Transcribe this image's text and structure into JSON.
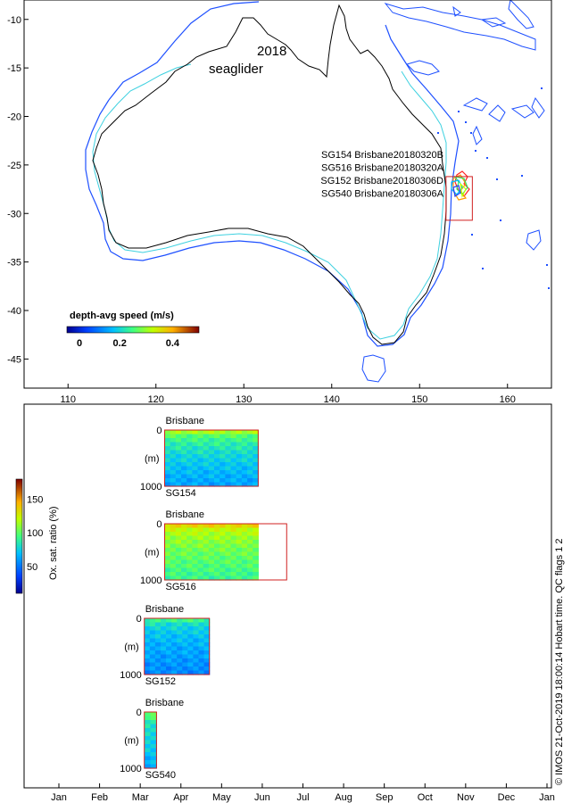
{
  "chart_data": [
    {
      "type": "map",
      "title_year": "2018",
      "title_name": "seaglider",
      "xlim": [
        105,
        165
      ],
      "ylim": [
        -48,
        -8
      ],
      "x_ticks": [
        110,
        120,
        130,
        140,
        150,
        160
      ],
      "y_ticks": [
        -10,
        -15,
        -20,
        -25,
        -30,
        -35,
        -40,
        -45
      ],
      "missions": [
        "SG154 Brisbane20180320B",
        "SG516 Brisbane20180320A",
        "SG152 Brisbane20180306D",
        "SG540 Brisbane20180306A"
      ],
      "region_box": {
        "lon": [
          153.0,
          156.0
        ],
        "lat": [
          -30.7,
          -26.2
        ]
      },
      "colorbar": {
        "label": "depth-avg speed (m/s)",
        "range": [
          0,
          0.5
        ],
        "ticks": [
          "0",
          "0.2",
          "0.4"
        ]
      }
    },
    {
      "type": "heatmap",
      "time_axis": [
        "Jan",
        "Feb",
        "Mar",
        "Apr",
        "May",
        "Jun",
        "Jul",
        "Aug",
        "Sep",
        "Oct",
        "Nov",
        "Dec",
        "Jan"
      ],
      "y_label": "(m)",
      "y_range": [
        0,
        1000
      ],
      "y_ticks": [
        "0",
        "1000"
      ],
      "colorbar": {
        "label": "Ox. sat. ratio (%)",
        "range": [
          10,
          180
        ],
        "ticks": [
          "50",
          "100",
          "150"
        ]
      },
      "panels": [
        {
          "glider": "SG154",
          "region": "Brisbane",
          "start_month": 3.6,
          "end_month": 5.9,
          "box_end_month": 5.9,
          "surface_value": 115,
          "deep_value": 62
        },
        {
          "glider": "SG516",
          "region": "Brisbane",
          "start_month": 3.6,
          "end_month": 5.9,
          "box_end_month": 6.6,
          "surface_value": 135,
          "deep_value": 92
        },
        {
          "glider": "SG152",
          "region": "Brisbane",
          "start_month": 3.1,
          "end_month": 4.7,
          "box_end_month": 4.7,
          "surface_value": 92,
          "deep_value": 55
        },
        {
          "glider": "SG540",
          "region": "Brisbane",
          "start_month": 3.1,
          "end_month": 3.4,
          "box_end_month": 3.4,
          "surface_value": 105,
          "deep_value": 65
        }
      ]
    }
  ],
  "footer": "© IMOS 21-Oct-2019 18:00:14 Hobart time. QC flags 1  2"
}
